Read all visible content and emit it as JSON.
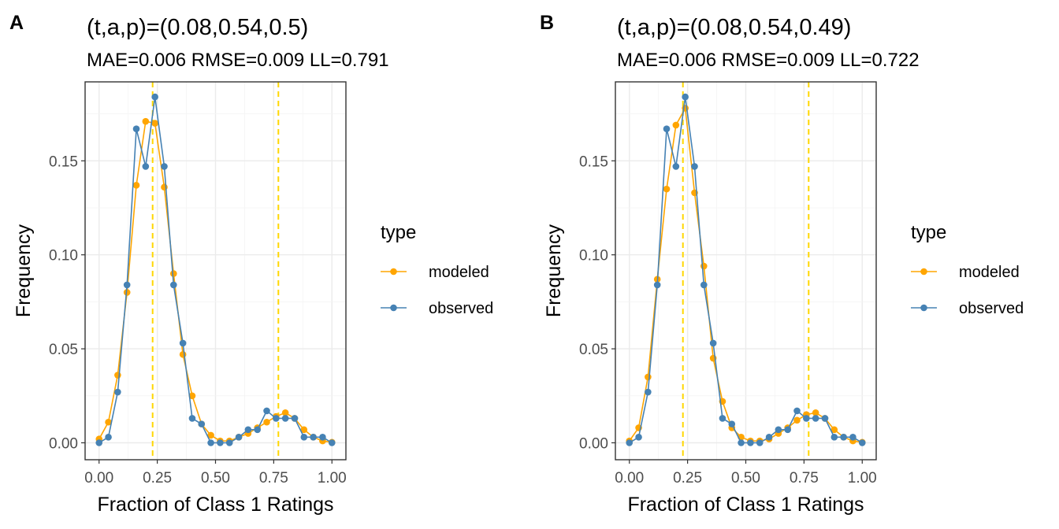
{
  "chart_data": [
    {
      "type": "line",
      "panel_label": "A",
      "title": "(t,a,p)=(0.08,0.54,0.5)",
      "subtitle": "MAE=0.006  RMSE=0.009  LL=0.791",
      "xlabel": "Fraction of Class 1 Ratings",
      "ylabel": "Frequency",
      "xlim": [
        -0.06,
        1.06
      ],
      "ylim": [
        -0.009,
        0.192
      ],
      "x_ticks": [
        "0.00",
        "0.25",
        "0.50",
        "0.75",
        "1.00"
      ],
      "x_tick_values": [
        0,
        0.25,
        0.5,
        0.75,
        1.0
      ],
      "y_ticks": [
        "0.00",
        "0.05",
        "0.10",
        "0.15"
      ],
      "y_tick_values": [
        0,
        0.05,
        0.1,
        0.15
      ],
      "grid": true,
      "vlines": [
        0.23,
        0.77
      ],
      "vline_color": "#FFD700",
      "legend": {
        "title": "type",
        "position": "right"
      },
      "x": [
        0,
        0.04,
        0.08,
        0.12,
        0.16,
        0.2,
        0.24,
        0.28,
        0.32,
        0.36,
        0.4,
        0.44,
        0.48,
        0.52,
        0.56,
        0.6,
        0.64,
        0.68,
        0.72,
        0.76,
        0.8,
        0.84,
        0.88,
        0.92,
        0.96,
        1.0
      ],
      "series": [
        {
          "name": "modeled",
          "color": "#FFA500",
          "values": [
            0.002,
            0.011,
            0.036,
            0.08,
            0.137,
            0.171,
            0.17,
            0.136,
            0.09,
            0.047,
            0.025,
            0.01,
            0.004,
            0.001,
            0.001,
            0.003,
            0.005,
            0.008,
            0.011,
            0.014,
            0.016,
            0.013,
            0.007,
            0.003,
            0.001,
            0.0003
          ]
        },
        {
          "name": "observed",
          "color": "#4682B4",
          "values": [
            0.0,
            0.003,
            0.027,
            0.084,
            0.167,
            0.147,
            0.184,
            0.147,
            0.084,
            0.053,
            0.013,
            0.01,
            0.0,
            0.0,
            0.0,
            0.003,
            0.007,
            0.007,
            0.017,
            0.013,
            0.013,
            0.013,
            0.003,
            0.003,
            0.003,
            0.0
          ]
        }
      ]
    },
    {
      "type": "line",
      "panel_label": "B",
      "title": "(t,a,p)=(0.08,0.54,0.49)",
      "subtitle": "MAE=0.006  RMSE=0.009  LL=0.722",
      "xlabel": "Fraction of Class 1 Ratings",
      "ylabel": "Frequency",
      "xlim": [
        -0.06,
        1.06
      ],
      "ylim": [
        -0.009,
        0.192
      ],
      "x_ticks": [
        "0.00",
        "0.25",
        "0.50",
        "0.75",
        "1.00"
      ],
      "x_tick_values": [
        0,
        0.25,
        0.5,
        0.75,
        1.0
      ],
      "y_ticks": [
        "0.00",
        "0.05",
        "0.10",
        "0.15"
      ],
      "y_tick_values": [
        0,
        0.05,
        0.1,
        0.15
      ],
      "grid": true,
      "vlines": [
        0.23,
        0.77
      ],
      "vline_color": "#FFD700",
      "legend": {
        "title": "type",
        "position": "right"
      },
      "x": [
        0,
        0.04,
        0.08,
        0.12,
        0.16,
        0.2,
        0.24,
        0.28,
        0.32,
        0.36,
        0.4,
        0.44,
        0.48,
        0.52,
        0.56,
        0.6,
        0.64,
        0.68,
        0.72,
        0.76,
        0.8,
        0.84,
        0.88,
        0.92,
        0.96,
        1.0
      ],
      "series": [
        {
          "name": "modeled",
          "color": "#FFA500",
          "values": [
            0.001,
            0.008,
            0.035,
            0.087,
            0.135,
            0.169,
            0.178,
            0.133,
            0.094,
            0.045,
            0.022,
            0.008,
            0.003,
            0.001,
            0.001,
            0.002,
            0.005,
            0.008,
            0.012,
            0.015,
            0.016,
            0.013,
            0.007,
            0.003,
            0.001,
            0.0003
          ]
        },
        {
          "name": "observed",
          "color": "#4682B4",
          "values": [
            0.0,
            0.003,
            0.027,
            0.084,
            0.167,
            0.147,
            0.184,
            0.147,
            0.084,
            0.053,
            0.013,
            0.01,
            0.0,
            0.0,
            0.0,
            0.003,
            0.007,
            0.007,
            0.017,
            0.013,
            0.013,
            0.013,
            0.003,
            0.003,
            0.003,
            0.0
          ]
        }
      ]
    }
  ]
}
